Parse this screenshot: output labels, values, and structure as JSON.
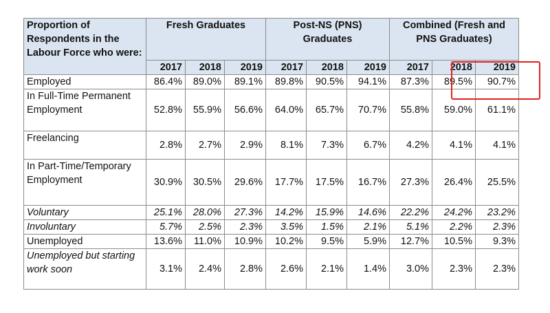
{
  "header": {
    "row_label": "Proportion of Respondents in the Labour Force who were:",
    "groups": [
      {
        "label": "Fresh Graduates"
      },
      {
        "label": "Post-NS (PNS) Graduates"
      },
      {
        "label": "Combined (Fresh and PNS Graduates)"
      }
    ],
    "years": [
      "2017",
      "2018",
      "2019",
      "2017",
      "2018",
      "2019",
      "2017",
      "2018",
      "2019"
    ]
  },
  "rows": [
    {
      "label": "Employed",
      "values": [
        "86.4%",
        "89.0%",
        "89.1%",
        "89.8%",
        "90.5%",
        "94.1%",
        "87.3%",
        "89.5%",
        "90.7%"
      ]
    },
    {
      "label": "In Full-Time Permanent Employment",
      "values": [
        "52.8%",
        "55.9%",
        "56.6%",
        "64.0%",
        "65.7%",
        "70.7%",
        "55.8%",
        "59.0%",
        "61.1%"
      ]
    },
    {
      "label": "Freelancing",
      "values": [
        "2.8%",
        "2.7%",
        "2.9%",
        "8.1%",
        "7.3%",
        "6.7%",
        "4.2%",
        "4.1%",
        "4.1%"
      ]
    },
    {
      "label": "In Part-Time/Temporary Employment",
      "values": [
        "30.9%",
        "30.5%",
        "29.6%",
        "17.7%",
        "17.5%",
        "16.7%",
        "27.3%",
        "26.4%",
        "25.5%"
      ]
    },
    {
      "label": "Voluntary",
      "values": [
        "25.1%",
        "28.0%",
        "27.3%",
        "14.2%",
        "15.9%",
        "14.6%",
        "22.2%",
        "24.2%",
        "23.2%"
      ]
    },
    {
      "label": "Involuntary",
      "values": [
        "5.7%",
        "2.5%",
        "2.3%",
        "3.5%",
        "1.5%",
        "2.1%",
        "5.1%",
        "2.2%",
        "2.3%"
      ]
    },
    {
      "label": "Unemployed",
      "values": [
        "13.6%",
        "11.0%",
        "10.9%",
        "10.2%",
        "9.5%",
        "5.9%",
        "12.7%",
        "10.5%",
        "9.3%"
      ]
    },
    {
      "label": "Unemployed but starting work soon",
      "values": [
        "3.1%",
        "2.4%",
        "2.8%",
        "2.6%",
        "2.1%",
        "1.4%",
        "3.0%",
        "2.3%",
        "2.3%"
      ]
    }
  ],
  "highlight_color": "#e0211f",
  "header_color": "#dbe5f1"
}
